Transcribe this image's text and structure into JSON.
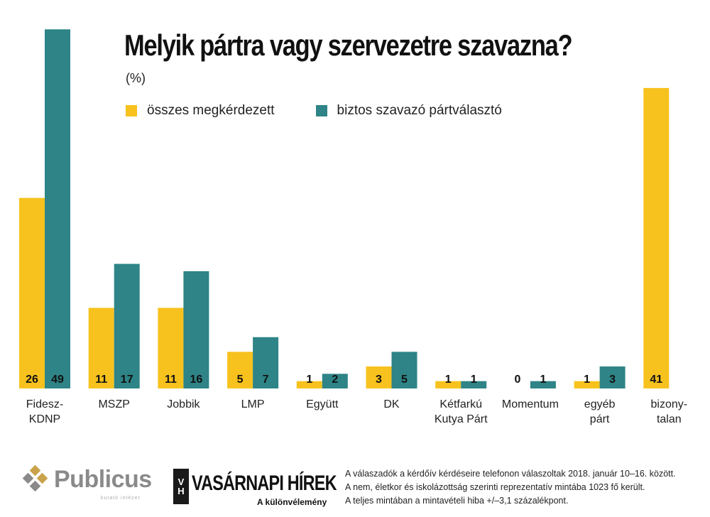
{
  "header": {
    "title": "Melyik pártra vagy szervezetre szavazna?",
    "unit": "(%)"
  },
  "legend": {
    "series_a": "összes megkérdezett",
    "series_b": "biztos szavazó pártválasztó"
  },
  "colors": {
    "series_a": "#F7C21E",
    "series_b": "#2E8486"
  },
  "chart_data": {
    "type": "bar",
    "title": "Melyik pártra vagy szervezetre szavazna?",
    "ylabel": "(%)",
    "ylim": [
      0,
      50
    ],
    "grid": false,
    "legend_position": "top-left",
    "categories": [
      "Fidesz-\nKDNP",
      "MSZP",
      "Jobbik",
      "LMP",
      "Együtt",
      "DK",
      "Kétfarkú\nKutya Párt",
      "Momentum",
      "egyéb\npárt",
      "bizony-\ntalan"
    ],
    "series": [
      {
        "name": "összes megkérdezett",
        "values": [
          26,
          11,
          11,
          5,
          1,
          3,
          1,
          0,
          1,
          41
        ]
      },
      {
        "name": "biztos szavazó pártválasztó",
        "values": [
          49,
          17,
          16,
          7,
          2,
          5,
          1,
          1,
          3,
          null
        ]
      }
    ]
  },
  "footer": {
    "publicus": "Publicus",
    "publicus_sub": "kutató intézet",
    "vh_letters": [
      "V",
      "H"
    ],
    "vh_name": "VASÁRNAPI HÍREK",
    "vh_tagline": "A különvélemény",
    "notes": [
      "A válaszadók a kérdőív kérdéseire telefonon válaszoltak 2018. január 10–16. között.",
      "A nem, életkor és iskolázottság szerinti reprezentatív mintába 1023 fő került.",
      "A teljes mintában a mintavételi hiba +/–3,1 százalékpont."
    ]
  }
}
